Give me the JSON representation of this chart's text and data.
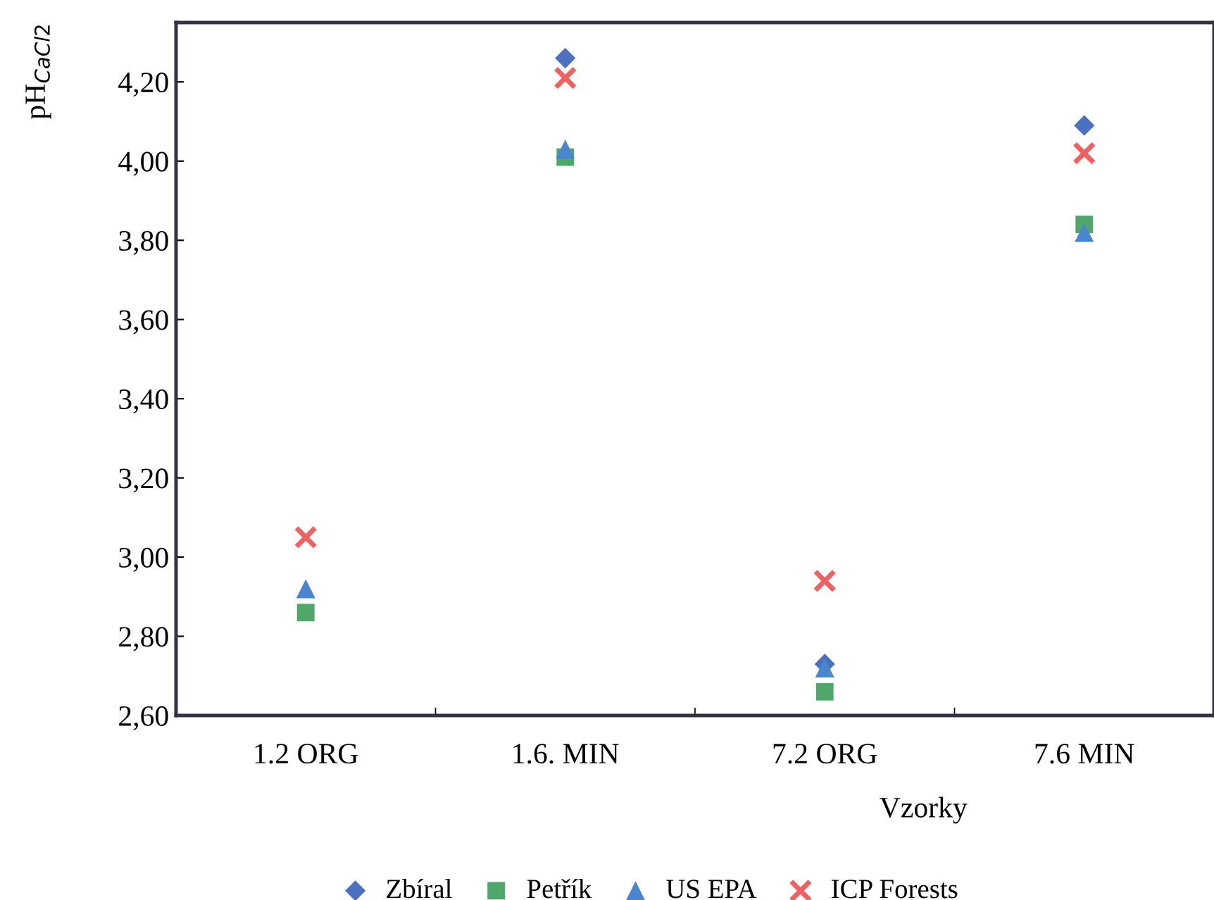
{
  "chart_data": {
    "type": "scatter",
    "xlabel": "Vzorky",
    "ylabel": "pH$_{CaCl2}$",
    "categories": [
      "1.2 ORG",
      "1.6. MIN",
      "7.2 ORG",
      "7.6 MIN"
    ],
    "series": [
      {
        "name": "Zbíral",
        "color": "#4a70c0",
        "marker": "diamond",
        "values": [
          null,
          4.26,
          2.73,
          4.09
        ]
      },
      {
        "name": "Petřík",
        "color": "#4fa86a",
        "marker": "square",
        "values": [
          2.86,
          4.01,
          2.66,
          3.84
        ]
      },
      {
        "name": "US EPA",
        "color": "#4a86d0",
        "marker": "triangle",
        "values": [
          2.92,
          4.03,
          2.72,
          3.82
        ]
      },
      {
        "name": "ICP Forests",
        "color": "#f06262",
        "marker": "cross",
        "values": [
          3.05,
          4.21,
          2.94,
          4.02
        ]
      }
    ],
    "ylim": [
      2.6,
      4.35
    ],
    "yticks": [
      {
        "value": 2.6,
        "label": "2,60"
      },
      {
        "value": 2.8,
        "label": "2,80"
      },
      {
        "value": 3.0,
        "label": "3,00"
      },
      {
        "value": 3.2,
        "label": "3,20"
      },
      {
        "value": 3.4,
        "label": "3,40"
      },
      {
        "value": 3.6,
        "label": "3,60"
      },
      {
        "value": 3.8,
        "label": "3,80"
      },
      {
        "value": 4.0,
        "label": "4,00"
      },
      {
        "value": 4.2,
        "label": "4,20"
      }
    ],
    "grid": false,
    "legend": "bottom"
  }
}
